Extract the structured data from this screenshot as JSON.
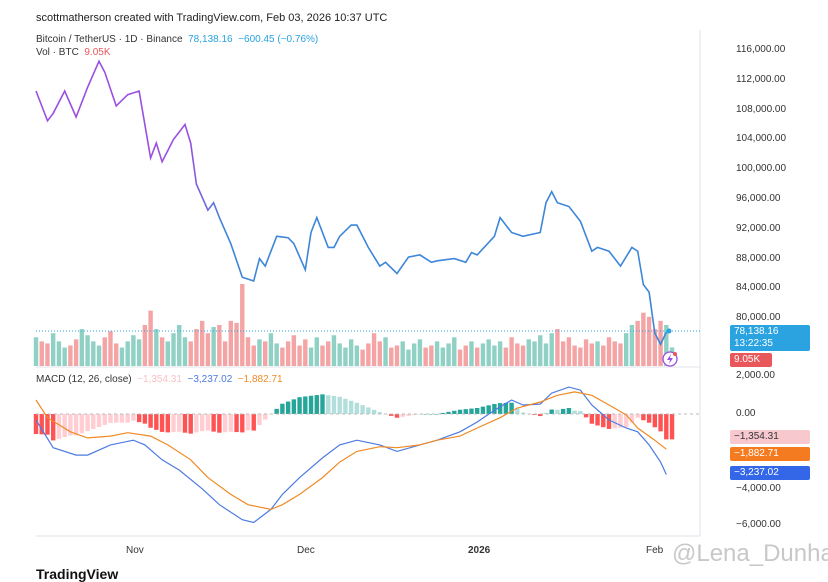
{
  "header": {
    "credit": "scottmatherson created with TradingView.com, Feb 03, 2026 10:37 UTC",
    "symbol": "Bitcoin / TetherUS · 1D · Binance",
    "price": "78,138.16",
    "change": "−600.45 (−0.76%)",
    "vol_label": "Vol · BTC",
    "vol_value": "9.05K",
    "macd_label": "MACD (12, 26, close)",
    "macd_hist": "−1,354.31",
    "macd_line": "−3,237.02",
    "macd_signal": "−1,882.71"
  },
  "price_axis": [
    "116,000.00",
    "112,000.00",
    "108,000.00",
    "104,000.00",
    "100,000.00",
    "96,000.00",
    "92,000.00",
    "88,000.00",
    "84,000.00",
    "80,000.00"
  ],
  "macd_axis": [
    "2,000.00",
    "0.00",
    "−4,000.00",
    "−6,000.00"
  ],
  "badges": {
    "price": "78,138.16",
    "countdown": "13:22:35",
    "volume": "9.05K",
    "hist": "−1,354.31",
    "signal": "−1,882.71",
    "macd": "−3,237.02"
  },
  "time_axis": [
    "Nov",
    "Dec",
    "2026",
    "Feb"
  ],
  "watermark": "@Lena_Dunham",
  "logo": "TradingView",
  "colors": {
    "up": "#8fd1c4",
    "down": "#f4a4a4",
    "price_line": "#3d86d8",
    "price_early": "#9b4fe0",
    "macd": "#4d7be0",
    "signal": "#f08a24"
  },
  "chart_data": {
    "type": "line",
    "title": "Bitcoin / TetherUS · 1D · Binance",
    "x_unit": "days since Oct 14, 2025",
    "ylim": [
      74000,
      118000
    ],
    "price": [
      [
        0,
        110500
      ],
      [
        2,
        106500
      ],
      [
        3,
        107500
      ],
      [
        5,
        110500
      ],
      [
        7,
        107000
      ],
      [
        9,
        111000
      ],
      [
        11,
        114500
      ],
      [
        12,
        113000
      ],
      [
        14,
        108500
      ],
      [
        16,
        110000
      ],
      [
        18,
        110500
      ],
      [
        20,
        101500
      ],
      [
        21,
        103500
      ],
      [
        22,
        101000
      ],
      [
        24,
        104000
      ],
      [
        26,
        106000
      ],
      [
        27,
        103500
      ],
      [
        28,
        98000
      ],
      [
        30,
        94500
      ],
      [
        31,
        95500
      ],
      [
        32,
        93500
      ],
      [
        34,
        90000
      ],
      [
        36,
        85500
      ],
      [
        38,
        85000
      ],
      [
        39,
        88000
      ],
      [
        40,
        87000
      ],
      [
        42,
        91000
      ],
      [
        44,
        90800
      ],
      [
        45,
        90000
      ],
      [
        47,
        86500
      ],
      [
        48,
        91500
      ],
      [
        49,
        93500
      ],
      [
        51,
        89500
      ],
      [
        52,
        89500
      ],
      [
        53,
        91000
      ],
      [
        55,
        92500
      ],
      [
        56,
        92500
      ],
      [
        58,
        89500
      ],
      [
        60,
        87000
      ],
      [
        61,
        87500
      ],
      [
        63,
        86000
      ],
      [
        65,
        88200
      ],
      [
        67,
        88500
      ],
      [
        69,
        87500
      ],
      [
        70,
        87700
      ],
      [
        73,
        88000
      ],
      [
        75,
        87500
      ],
      [
        76,
        88800
      ],
      [
        77,
        88500
      ],
      [
        80,
        91000
      ],
      [
        81,
        93500
      ],
      [
        83,
        91500
      ],
      [
        85,
        91000
      ],
      [
        88,
        91500
      ],
      [
        89,
        95500
      ],
      [
        90,
        97000
      ],
      [
        91,
        95500
      ],
      [
        93,
        95000
      ],
      [
        95,
        93000
      ],
      [
        97,
        89000
      ],
      [
        98,
        89500
      ],
      [
        100,
        89000
      ],
      [
        102,
        87000
      ],
      [
        104,
        89500
      ],
      [
        105,
        89000
      ],
      [
        106,
        84500
      ],
      [
        107,
        83500
      ],
      [
        108,
        78000
      ],
      [
        109,
        76500
      ],
      [
        110,
        78138
      ]
    ],
    "volume_k": [
      14,
      12,
      11,
      16,
      12,
      9,
      10,
      13,
      18,
      15,
      12,
      10,
      14,
      17,
      11,
      9,
      12,
      15,
      13,
      20,
      27,
      18,
      14,
      12,
      16,
      20,
      14,
      12,
      18,
      22,
      16,
      19,
      20,
      12,
      22,
      21,
      40,
      14,
      10,
      13,
      12,
      16,
      11,
      9,
      12,
      15,
      10,
      13,
      9,
      14,
      10,
      12,
      15,
      11,
      9,
      13,
      10,
      8,
      11,
      16,
      12,
      14,
      9,
      10,
      12,
      8,
      11,
      13,
      9,
      10,
      12,
      9,
      11,
      14,
      8,
      10,
      12,
      9,
      11,
      13,
      10,
      12,
      9,
      14,
      11,
      10,
      13,
      12,
      15,
      11,
      16,
      18,
      12,
      14,
      10,
      9,
      13,
      11,
      12,
      10,
      14,
      12,
      11,
      16,
      20,
      22,
      26,
      24,
      18,
      22,
      20,
      9.05
    ],
    "macd": [
      [
        0,
        -320
      ],
      [
        3,
        -1800
      ],
      [
        7,
        -2200
      ],
      [
        9,
        -2200
      ],
      [
        13,
        -1650
      ],
      [
        17,
        -1400
      ],
      [
        19,
        -1650
      ],
      [
        22,
        -2450
      ],
      [
        25,
        -3000
      ],
      [
        29,
        -4000
      ],
      [
        32,
        -4850
      ],
      [
        36,
        -5650
      ],
      [
        38,
        -5800
      ],
      [
        41,
        -5100
      ],
      [
        43,
        -4300
      ],
      [
        46,
        -3400
      ],
      [
        50,
        -2350
      ],
      [
        53,
        -1650
      ],
      [
        56,
        -1400
      ],
      [
        60,
        -1650
      ],
      [
        63,
        -2000
      ],
      [
        67,
        -1650
      ],
      [
        70,
        -1400
      ],
      [
        74,
        -950
      ],
      [
        77,
        -430
      ],
      [
        80,
        200
      ],
      [
        83,
        750
      ],
      [
        85,
        480
      ],
      [
        88,
        530
      ],
      [
        90,
        1120
      ],
      [
        93,
        1440
      ],
      [
        95,
        1280
      ],
      [
        97,
        480
      ],
      [
        100,
        -320
      ],
      [
        103,
        -750
      ],
      [
        105,
        -950
      ],
      [
        107,
        -1650
      ],
      [
        109,
        -2570
      ],
      [
        110,
        -3237
      ]
    ],
    "signal": [
      [
        0,
        750
      ],
      [
        2,
        -200
      ],
      [
        6,
        -950
      ],
      [
        9,
        -1280
      ],
      [
        13,
        -1180
      ],
      [
        16,
        -1000
      ],
      [
        20,
        -1180
      ],
      [
        23,
        -1650
      ],
      [
        27,
        -2450
      ],
      [
        30,
        -3400
      ],
      [
        34,
        -4300
      ],
      [
        37,
        -4850
      ],
      [
        41,
        -5100
      ],
      [
        43,
        -4850
      ],
      [
        46,
        -4300
      ],
      [
        50,
        -3400
      ],
      [
        53,
        -2570
      ],
      [
        56,
        -2000
      ],
      [
        60,
        -1750
      ],
      [
        63,
        -1800
      ],
      [
        67,
        -1650
      ],
      [
        70,
        -1400
      ],
      [
        74,
        -1180
      ],
      [
        77,
        -750
      ],
      [
        81,
        -200
      ],
      [
        84,
        320
      ],
      [
        88,
        640
      ],
      [
        91,
        1000
      ],
      [
        94,
        1180
      ],
      [
        97,
        1000
      ],
      [
        100,
        480
      ],
      [
        103,
        -50
      ],
      [
        105,
        -750
      ],
      [
        108,
        -1400
      ],
      [
        110,
        -1882
      ]
    ],
    "macd_ylim": [
      -6500,
      2500
    ]
  }
}
